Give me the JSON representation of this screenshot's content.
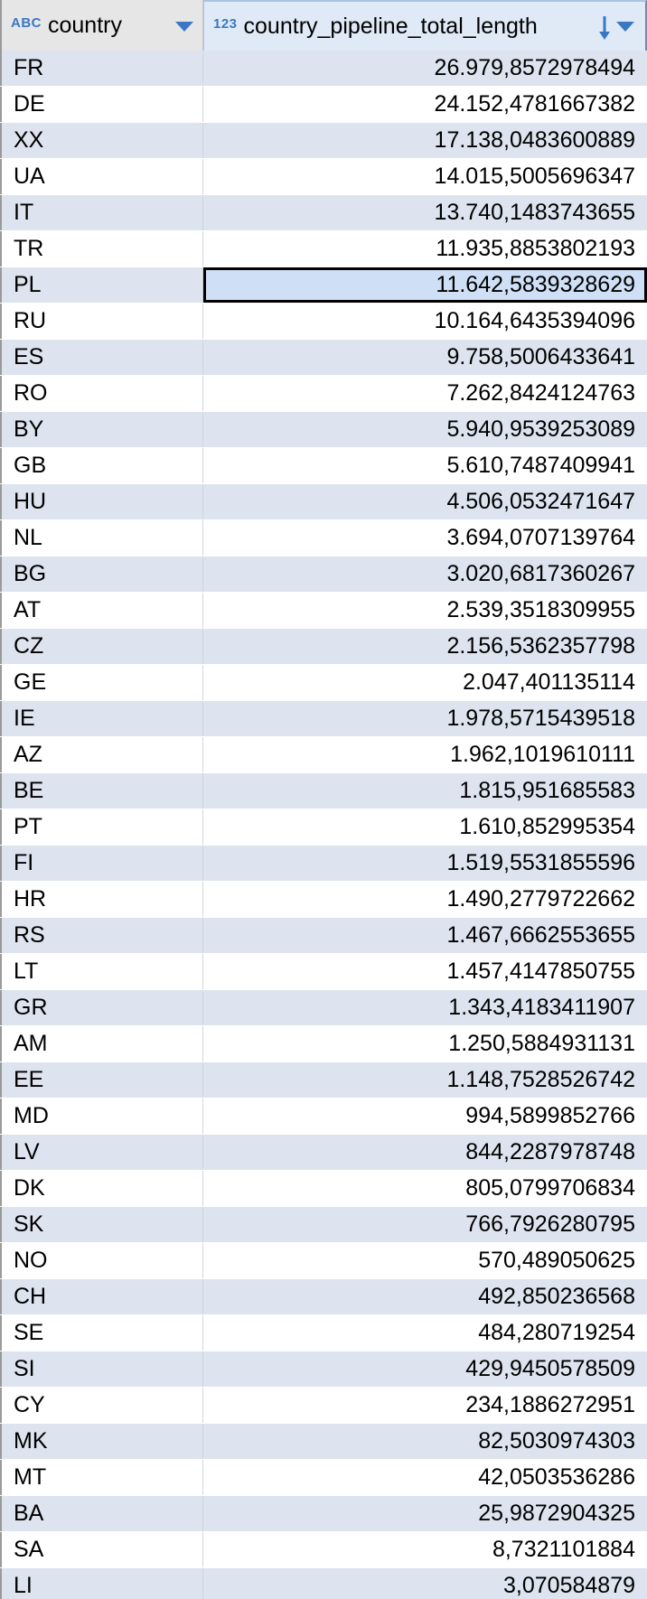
{
  "columns": {
    "country": {
      "type_badge": "ABC",
      "label": "country"
    },
    "length": {
      "type_badge": "123",
      "label": "country_pipeline_total_length"
    }
  },
  "selected_row_index": 6,
  "rows": [
    {
      "country": "FR",
      "length": "26.979,8572978494"
    },
    {
      "country": "DE",
      "length": "24.152,4781667382"
    },
    {
      "country": "XX",
      "length": "17.138,0483600889"
    },
    {
      "country": "UA",
      "length": "14.015,5005696347"
    },
    {
      "country": "IT",
      "length": "13.740,1483743655"
    },
    {
      "country": "TR",
      "length": "11.935,8853802193"
    },
    {
      "country": "PL",
      "length": "11.642,5839328629"
    },
    {
      "country": "RU",
      "length": "10.164,6435394096"
    },
    {
      "country": "ES",
      "length": "9.758,5006433641"
    },
    {
      "country": "RO",
      "length": "7.262,8424124763"
    },
    {
      "country": "BY",
      "length": "5.940,9539253089"
    },
    {
      "country": "GB",
      "length": "5.610,7487409941"
    },
    {
      "country": "HU",
      "length": "4.506,0532471647"
    },
    {
      "country": "NL",
      "length": "3.694,0707139764"
    },
    {
      "country": "BG",
      "length": "3.020,6817360267"
    },
    {
      "country": "AT",
      "length": "2.539,3518309955"
    },
    {
      "country": "CZ",
      "length": "2.156,5362357798"
    },
    {
      "country": "GE",
      "length": "2.047,401135114"
    },
    {
      "country": "IE",
      "length": "1.978,5715439518"
    },
    {
      "country": "AZ",
      "length": "1.962,1019610111"
    },
    {
      "country": "BE",
      "length": "1.815,951685583"
    },
    {
      "country": "PT",
      "length": "1.610,852995354"
    },
    {
      "country": "FI",
      "length": "1.519,5531855596"
    },
    {
      "country": "HR",
      "length": "1.490,2779722662"
    },
    {
      "country": "RS",
      "length": "1.467,6662553655"
    },
    {
      "country": "LT",
      "length": "1.457,4147850755"
    },
    {
      "country": "GR",
      "length": "1.343,4183411907"
    },
    {
      "country": "AM",
      "length": "1.250,5884931131"
    },
    {
      "country": "EE",
      "length": "1.148,7528526742"
    },
    {
      "country": "MD",
      "length": "994,5899852766"
    },
    {
      "country": "LV",
      "length": "844,2287978748"
    },
    {
      "country": "DK",
      "length": "805,0799706834"
    },
    {
      "country": "SK",
      "length": "766,7926280795"
    },
    {
      "country": "NO",
      "length": "570,489050625"
    },
    {
      "country": "CH",
      "length": "492,850236568"
    },
    {
      "country": "SE",
      "length": "484,280719254"
    },
    {
      "country": "SI",
      "length": "429,9450578509"
    },
    {
      "country": "CY",
      "length": "234,1886272951"
    },
    {
      "country": "MK",
      "length": "82,5030974303"
    },
    {
      "country": "MT",
      "length": "42,0503536286"
    },
    {
      "country": "BA",
      "length": "25,9872904325"
    },
    {
      "country": "SA",
      "length": "8,7321101884"
    },
    {
      "country": "LI",
      "length": "3,070584879"
    }
  ]
}
